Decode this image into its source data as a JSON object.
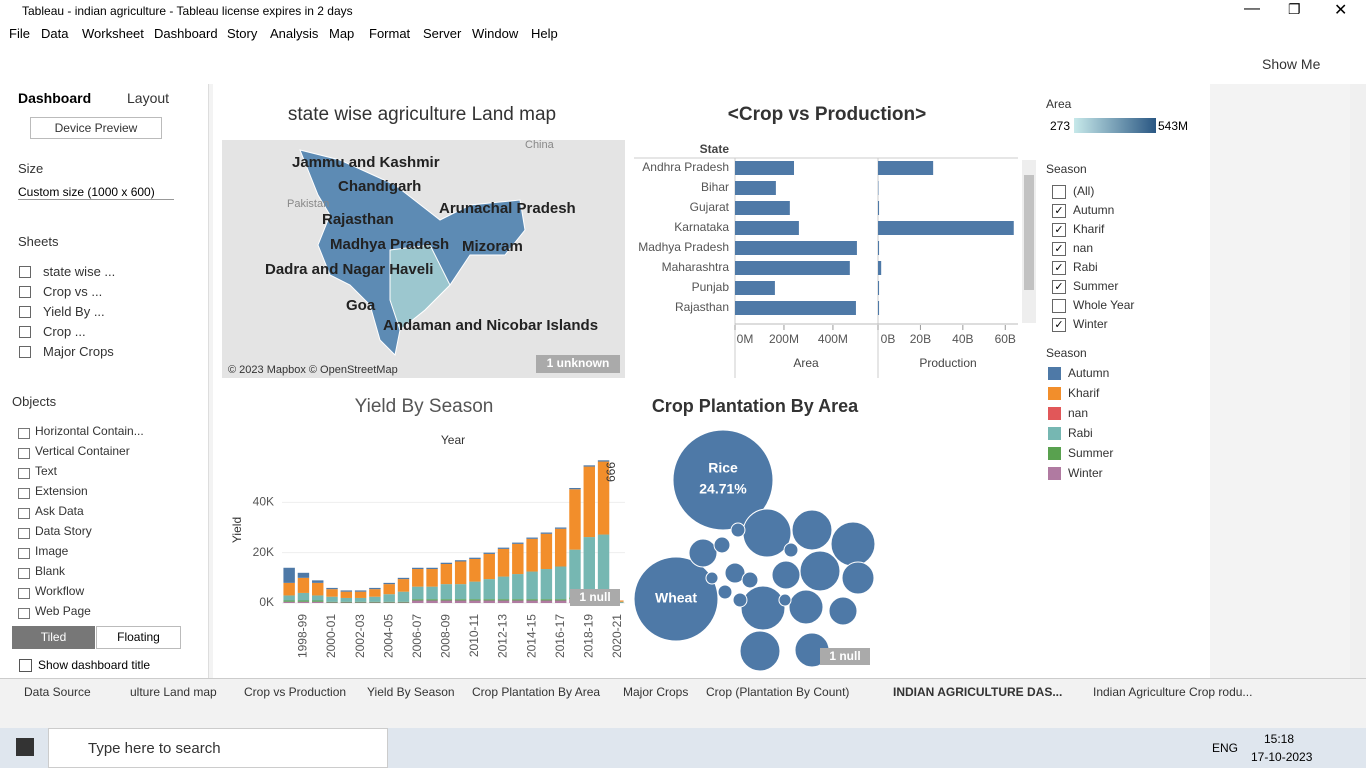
{
  "window": {
    "title": "Tableau - indian agriculture - Tableau license expires in 2 days"
  },
  "menu": [
    "File",
    "Data",
    "Worksheet",
    "Dashboard",
    "Story",
    "Analysis",
    "Map",
    "Format",
    "Server",
    "Window",
    "Help"
  ],
  "toolbar": {
    "show_me": "Show Me"
  },
  "side_panel": {
    "tabs": [
      "Dashboard",
      "Layout"
    ],
    "device_preview": "Device Preview",
    "size_label": "Size",
    "size_value": "Custom size (1000 x 600)",
    "sheets_label": "Sheets",
    "sheets": [
      "state wise ...",
      "Crop vs ...",
      "Yield By ...",
      "Crop ...",
      "Major Crops"
    ],
    "objects_label": "Objects",
    "objects": [
      "Horizontal Contain...",
      "Vertical Container",
      "Text",
      "Extension",
      "Ask Data",
      "Data Story",
      "Image",
      "Blank",
      "Workflow",
      "Web Page"
    ],
    "layout_modes": [
      "Tiled",
      "Floating"
    ],
    "show_title": "Show dashboard title"
  },
  "map": {
    "title": "state wise agriculture Land map",
    "labels": [
      "Jammu and Kashmir",
      "Chandigarh",
      "Rajasthan",
      "Arunachal Pradesh",
      "Madhya Pradesh",
      "Mizoram",
      "Dadra and Nagar Haveli",
      "Goa",
      "Andaman and Nicobar Islands"
    ],
    "places": [
      "China",
      "Pakistan"
    ],
    "attribution": "© 2023 Mapbox © OpenStreetMap",
    "unknown": "1 unknown"
  },
  "chart_data": [
    {
      "type": "hbar",
      "title": "<Crop vs Production>",
      "row_header": "State",
      "categories": [
        "Andhra Pradesh",
        "Bihar",
        "Gujarat",
        "Karnataka",
        "Madhya Pradesh",
        "Maharashtra",
        "Punjab",
        "Rajasthan"
      ],
      "series": [
        {
          "name": "Area",
          "color": "#4e79a7",
          "values": [
            241,
            167,
            224,
            261,
            498,
            469,
            163,
            494
          ],
          "xlim": [
            0,
            580
          ],
          "xticks": [
            {
              "value": 0,
              "label": "0M"
            },
            {
              "value": 200,
              "label": "200M"
            },
            {
              "value": 400,
              "label": "400M"
            }
          ]
        },
        {
          "name": "Production",
          "color": "#4e79a7",
          "values": [
            26,
            0.2,
            0.5,
            64,
            0.5,
            1.5,
            0.5,
            0.5
          ],
          "xlim": [
            0,
            66
          ],
          "xticks": [
            {
              "value": 0,
              "label": "0B"
            },
            {
              "value": 20,
              "label": "20B"
            },
            {
              "value": 40,
              "label": "40B"
            },
            {
              "value": 60,
              "label": "60B"
            }
          ]
        }
      ]
    },
    {
      "type": "stacked-bar",
      "title": "Yield By Season",
      "x_header": "Year",
      "ylabel": "Yield",
      "legend_title": "Season",
      "null_note": "1 null",
      "annotation": "666",
      "categories": [
        null,
        "1998-99",
        null,
        "2000-01",
        null,
        "2002-03",
        null,
        "2004-05",
        null,
        "2006-07",
        null,
        "2008-09",
        null,
        "2010-11",
        null,
        "2012-13",
        null,
        "2014-15",
        null,
        "2016-17",
        null,
        "2018-19",
        null,
        "2020-21"
      ],
      "series": [
        {
          "name": "Autumn",
          "color": "#4e79a7",
          "values": [
            6,
            2,
            1,
            0.5,
            0.5,
            0.5,
            0.5,
            0.5,
            0.5,
            0.5,
            0.5,
            0.5,
            0.5,
            0.5,
            0.5,
            0.5,
            0.5,
            0.5,
            0.5,
            0.5,
            0.5,
            0.5,
            0.5,
            0
          ]
        },
        {
          "name": "Kharif",
          "color": "#f28e2b",
          "values": [
            5,
            6,
            5,
            3,
            2.5,
            2.5,
            3,
            4,
            5,
            7,
            7,
            8,
            9,
            9,
            10,
            11,
            12,
            13,
            14,
            15,
            24,
            28,
            29,
            0.5
          ]
        },
        {
          "name": "nan",
          "color": "#e15759",
          "values": [
            0,
            0,
            0,
            0,
            0,
            0,
            0,
            0,
            0,
            0,
            0,
            0,
            0,
            0,
            0,
            0,
            0,
            0,
            0,
            0,
            0,
            0,
            0,
            0
          ]
        },
        {
          "name": "Rabi",
          "color": "#76b7b2",
          "values": [
            2,
            3,
            2,
            2,
            1.5,
            1.5,
            2,
            3,
            4,
            5,
            5,
            6,
            6,
            7,
            8,
            9,
            10,
            11,
            12,
            13,
            19,
            24,
            25,
            0.3
          ]
        },
        {
          "name": "Summer",
          "color": "#59a14f",
          "values": [
            0.5,
            0.5,
            0.5,
            0.3,
            0.3,
            0.3,
            0.3,
            0.3,
            0.3,
            0.5,
            0.5,
            0.5,
            0.5,
            0.5,
            0.5,
            0.5,
            0.5,
            0.5,
            0.5,
            0.5,
            0.7,
            0.7,
            0.7,
            0.1
          ]
        },
        {
          "name": "Winter",
          "color": "#b07aa1",
          "values": [
            0.5,
            0.5,
            0.5,
            0.2,
            0.2,
            0.2,
            0.2,
            0.2,
            0.2,
            1,
            1,
            1,
            1,
            1,
            1,
            1,
            1,
            1,
            1,
            1,
            1.5,
            1.5,
            1.5,
            0.1
          ]
        }
      ],
      "ylim": [
        0,
        60
      ],
      "yticks": [
        {
          "value": 0,
          "label": "0K"
        },
        {
          "value": 20,
          "label": "20K"
        },
        {
          "value": 40,
          "label": "40K"
        }
      ]
    },
    {
      "type": "bubble",
      "title": "Crop Plantation By Area",
      "color": "#4e79a7",
      "null_note": "1 null",
      "labels": [
        "Rice",
        "Wheat",
        null,
        null,
        null,
        null,
        null,
        null,
        null,
        null,
        null,
        null,
        null,
        null,
        null,
        null,
        null,
        null,
        null,
        null,
        null,
        null,
        null
      ],
      "values": [
        24.71,
        17.43,
        5.69,
        3.95,
        4.78,
        3.95,
        4.78,
        2.86,
        1.94,
        2.53,
        3.95,
        2.86,
        1.94,
        1.94,
        0.99,
        0.63,
        0.63,
        0.48,
        0.48,
        0.36,
        0.36,
        0.48,
        0.48
      ],
      "value_labels": [
        "24.71%",
        null,
        null,
        null,
        null,
        null,
        null,
        null,
        null,
        null,
        null,
        null,
        null,
        null,
        null,
        null,
        null,
        null,
        null,
        null,
        null,
        null,
        null
      ]
    }
  ],
  "area_legend": {
    "title": "Area",
    "min": "273",
    "max": "543M"
  },
  "season_filter": {
    "title": "Season",
    "items": [
      {
        "label": "(All)",
        "checked": false
      },
      {
        "label": "Autumn",
        "checked": true
      },
      {
        "label": "Kharif",
        "checked": true
      },
      {
        "label": "nan",
        "checked": true
      },
      {
        "label": "Rabi",
        "checked": true
      },
      {
        "label": "Summer",
        "checked": true
      },
      {
        "label": "Whole Year",
        "checked": false
      },
      {
        "label": "Winter",
        "checked": true
      }
    ]
  },
  "sheet_tabs": [
    "Data Source",
    "ulture Land map",
    "Crop vs Production",
    "Yield By Season",
    "Crop Plantation By Area",
    "Major Crops",
    "Crop (Plantation By Count)",
    "INDIAN AGRICULTURE DAS...",
    "Indian Agriculture Crop rodu..."
  ],
  "taskbar": {
    "search": "Type here to search",
    "lang": "ENG",
    "time": "15:18",
    "date": "17-10-2023"
  }
}
